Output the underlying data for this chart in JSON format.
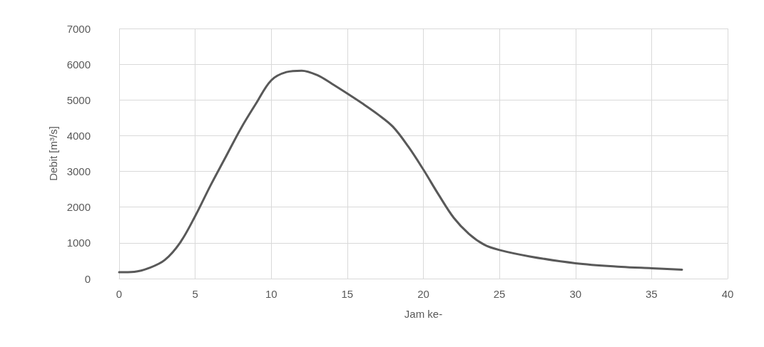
{
  "chart_data": {
    "type": "line",
    "xlabel": "Jam ke-",
    "ylabel": "Debit [m³/s]",
    "x": [
      0,
      1,
      2,
      3,
      4,
      5,
      6,
      7,
      8,
      9,
      10,
      11,
      12,
      13,
      14,
      15,
      16,
      17,
      18,
      19,
      20,
      21,
      22,
      23,
      24,
      25,
      27,
      30,
      33,
      35,
      37
    ],
    "series": [
      {
        "color": "#595959",
        "values": [
          180,
          190,
          300,
          520,
          1000,
          1750,
          2600,
          3400,
          4200,
          4900,
          5550,
          5780,
          5820,
          5700,
          5450,
          5180,
          4900,
          4600,
          4250,
          3700,
          3050,
          2350,
          1700,
          1250,
          950,
          800,
          620,
          430,
          330,
          290,
          250
        ]
      }
    ],
    "xlim": [
      0,
      40
    ],
    "xticks": [
      0,
      5,
      10,
      15,
      20,
      25,
      30,
      35,
      40
    ],
    "ylim": [
      0,
      7000
    ],
    "yticks": [
      0,
      1000,
      2000,
      3000,
      4000,
      5000,
      6000,
      7000
    ],
    "grid": true,
    "marker": "none",
    "line_style": "solid"
  }
}
